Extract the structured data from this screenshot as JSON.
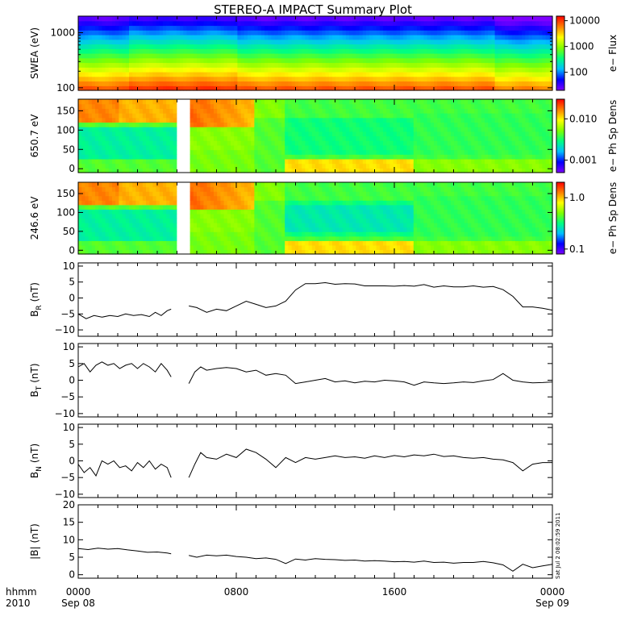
{
  "title": "STEREO-A IMPACT Summary Plot",
  "time_axis": {
    "row_label_1": "hhmm",
    "row_label_2": "2010",
    "ticks": [
      {
        "hour": 0,
        "label": "0000",
        "date": "Sep 08"
      },
      {
        "hour": 8,
        "label": "0800",
        "date": ""
      },
      {
        "hour": 16,
        "label": "1600",
        "date": ""
      },
      {
        "hour": 24,
        "label": "0000",
        "date": "Sep 09"
      }
    ],
    "range_hours": [
      0,
      24
    ]
  },
  "timestamp": "Sat Jul  2 08:02:59 2011",
  "colors": {
    "colorbar_stops": [
      "#7f00ff",
      "#0000ff",
      "#00bfff",
      "#00ff80",
      "#80ff00",
      "#ffff00",
      "#ff8000",
      "#ff0000"
    ]
  },
  "chart_data": [
    {
      "type": "heatmap",
      "ylabel": "SWEA (eV)",
      "yscale": "log",
      "ylim": [
        90,
        2000
      ],
      "yticks": [
        {
          "v": 100,
          "label": "100"
        },
        {
          "v": 1000,
          "label": "1000"
        }
      ],
      "colorbar": {
        "label": "e− Flux",
        "scale": "log",
        "range": [
          20,
          15000
        ],
        "ticks": [
          {
            "v": 100,
            "label": "100"
          },
          {
            "v": 1000,
            "label": "1000"
          },
          {
            "v": 10000,
            "label": "10000"
          }
        ]
      },
      "data_gaps_hours": []
    },
    {
      "type": "heatmap",
      "ylabel": "650.7 eV",
      "ylim": [
        -10,
        180
      ],
      "yticks": [
        {
          "v": 0,
          "label": "0"
        },
        {
          "v": 50,
          "label": "50"
        },
        {
          "v": 100,
          "label": "100"
        },
        {
          "v": 150,
          "label": "150"
        }
      ],
      "colorbar": {
        "label": "e− Ph Sp Dens",
        "scale": "log",
        "range": [
          0.0005,
          0.03
        ],
        "ticks": [
          {
            "v": 0.001,
            "label": "0.001"
          },
          {
            "v": 0.01,
            "label": "0.010"
          }
        ]
      },
      "data_gaps_hours": [
        [
          5.0,
          5.6
        ]
      ]
    },
    {
      "type": "heatmap",
      "ylabel": "246.6 eV",
      "ylim": [
        -10,
        180
      ],
      "yticks": [
        {
          "v": 0,
          "label": "0"
        },
        {
          "v": 50,
          "label": "50"
        },
        {
          "v": 100,
          "label": "100"
        },
        {
          "v": 150,
          "label": "150"
        }
      ],
      "colorbar": {
        "label": "e− Ph Sp Dens",
        "scale": "log",
        "range": [
          0.08,
          2.0
        ],
        "ticks": [
          {
            "v": 0.1,
            "label": "0.1"
          },
          {
            "v": 1.0,
            "label": "1.0"
          }
        ]
      },
      "data_gaps_hours": [
        [
          5.0,
          5.6
        ]
      ]
    },
    {
      "type": "line",
      "ylabel": "B",
      "ylabel_sub": "R",
      "ylabel_unit": "(nT)",
      "ylim": [
        -12,
        11
      ],
      "yticks": [
        {
          "v": -10,
          "label": "−10"
        },
        {
          "v": -5,
          "label": "−5"
        },
        {
          "v": 0,
          "label": "0"
        },
        {
          "v": 5,
          "label": "5"
        },
        {
          "v": 10,
          "label": "10"
        }
      ],
      "series": [
        {
          "segments": [
            {
              "x": [
                0,
                0.4,
                0.8,
                1.2,
                1.6,
                2.0,
                2.4,
                2.8,
                3.2,
                3.6,
                3.9,
                4.2,
                4.5,
                4.7
              ],
              "y": [
                -5,
                -6.5,
                -5.5,
                -6,
                -5.5,
                -5.8,
                -5,
                -5.5,
                -5.2,
                -5.8,
                -4.5,
                -5.5,
                -4,
                -3.5
              ]
            },
            {
              "x": [
                5.6,
                6.0,
                6.5,
                7.0,
                7.5,
                8.0,
                8.5,
                9.0,
                9.5,
                10.0,
                10.5,
                11.0,
                11.5,
                12.0,
                12.5,
                13.0,
                13.5,
                14.0,
                14.5,
                15.0,
                15.5,
                16.0,
                16.5,
                17.0,
                17.5,
                18.0,
                18.5,
                19.0,
                19.5,
                20.0,
                20.5,
                21.0,
                21.5,
                22.0,
                22.5,
                23.0,
                23.5,
                24.0
              ],
              "y": [
                -2.5,
                -3,
                -4.5,
                -3.5,
                -4,
                -2.5,
                -1,
                -2,
                -3,
                -2.5,
                -1,
                2.5,
                4.5,
                4.5,
                4.8,
                4.3,
                4.5,
                4.4,
                3.8,
                3.8,
                3.8,
                3.7,
                3.9,
                3.7,
                4.2,
                3.4,
                3.8,
                3.5,
                3.5,
                3.8,
                3.4,
                3.6,
                2.6,
                0.5,
                -2.8,
                -2.8,
                -3.2,
                -3.8
              ]
            }
          ]
        }
      ]
    },
    {
      "type": "line",
      "ylabel": "B",
      "ylabel_sub": "T",
      "ylabel_unit": "(nT)",
      "ylim": [
        -11,
        11
      ],
      "yticks": [
        {
          "v": -10,
          "label": "−10"
        },
        {
          "v": -5,
          "label": "−5"
        },
        {
          "v": 0,
          "label": "0"
        },
        {
          "v": 5,
          "label": "5"
        },
        {
          "v": 10,
          "label": "10"
        }
      ],
      "series": [
        {
          "segments": [
            {
              "x": [
                0,
                0.3,
                0.6,
                0.9,
                1.2,
                1.5,
                1.8,
                2.1,
                2.4,
                2.7,
                3.0,
                3.3,
                3.6,
                3.9,
                4.2,
                4.5,
                4.7
              ],
              "y": [
                4,
                5,
                2.5,
                4.5,
                5.5,
                4.5,
                5,
                3.5,
                4.5,
                5,
                3.5,
                5,
                4,
                2.5,
                5,
                3,
                1
              ]
            },
            {
              "x": [
                5.6,
                5.9,
                6.2,
                6.5,
                7.0,
                7.5,
                8.0,
                8.5,
                9.0,
                9.5,
                10.0,
                10.5,
                11.0,
                11.5,
                12.0,
                12.5,
                13.0,
                13.5,
                14.0,
                14.5,
                15.0,
                15.5,
                16.0,
                16.5,
                17.0,
                17.5,
                18.0,
                18.5,
                19.0,
                19.5,
                20.0,
                20.5,
                21.0,
                21.5,
                22.0,
                22.5,
                23.0,
                23.5,
                24.0
              ],
              "y": [
                -1,
                2.5,
                4,
                3,
                3.5,
                3.8,
                3.5,
                2.5,
                3,
                1.5,
                2,
                1.5,
                -1,
                -0.5,
                0,
                0.5,
                -0.5,
                -0.2,
                -0.8,
                -0.3,
                -0.5,
                0,
                -0.2,
                -0.5,
                -1.5,
                -0.5,
                -0.8,
                -1,
                -0.8,
                -0.5,
                -0.7,
                -0.2,
                0.2,
                2,
                0,
                -0.5,
                -0.8,
                -0.7,
                -0.5
              ]
            }
          ]
        }
      ]
    },
    {
      "type": "line",
      "ylabel": "B",
      "ylabel_sub": "N",
      "ylabel_unit": "(nT)",
      "ylim": [
        -11,
        11
      ],
      "yticks": [
        {
          "v": -10,
          "label": "−10"
        },
        {
          "v": -5,
          "label": "−5"
        },
        {
          "v": 0,
          "label": "0"
        },
        {
          "v": 5,
          "label": "5"
        },
        {
          "v": 10,
          "label": "10"
        }
      ],
      "series": [
        {
          "segments": [
            {
              "x": [
                0,
                0.3,
                0.6,
                0.9,
                1.2,
                1.5,
                1.8,
                2.1,
                2.4,
                2.7,
                3.0,
                3.3,
                3.6,
                3.9,
                4.2,
                4.5,
                4.7
              ],
              "y": [
                -1,
                -3.5,
                -2,
                -4.5,
                0,
                -1,
                0,
                -2,
                -1.5,
                -3,
                -0.5,
                -2,
                0,
                -2.5,
                -1,
                -2,
                -5
              ]
            },
            {
              "x": [
                5.6,
                5.9,
                6.2,
                6.5,
                7.0,
                7.5,
                8.0,
                8.5,
                9.0,
                9.5,
                10.0,
                10.5,
                11.0,
                11.5,
                12.0,
                12.5,
                13.0,
                13.5,
                14.0,
                14.5,
                15.0,
                15.5,
                16.0,
                16.5,
                17.0,
                17.5,
                18.0,
                18.5,
                19.0,
                19.5,
                20.0,
                20.5,
                21.0,
                21.5,
                22.0,
                22.5,
                23.0,
                23.5,
                24.0
              ],
              "y": [
                -5,
                -1,
                2.5,
                1,
                0.5,
                2,
                1,
                3.5,
                2.5,
                0.5,
                -2,
                1,
                -0.5,
                1,
                0.5,
                1,
                1.5,
                1,
                1.2,
                0.8,
                1.5,
                1,
                1.6,
                1.2,
                1.8,
                1.5,
                2,
                1.3,
                1.5,
                1,
                0.8,
                1,
                0.5,
                0.3,
                -0.5,
                -3,
                -1,
                -0.5,
                -0.5
              ]
            }
          ]
        }
      ]
    },
    {
      "type": "line",
      "ylabel": "|B|",
      "ylabel_sub": "",
      "ylabel_unit": "(nT)",
      "ylim": [
        -1,
        20
      ],
      "yticks": [
        {
          "v": 0,
          "label": "0"
        },
        {
          "v": 5,
          "label": "5"
        },
        {
          "v": 10,
          "label": "10"
        },
        {
          "v": 15,
          "label": "15"
        },
        {
          "v": 20,
          "label": "20"
        }
      ],
      "series": [
        {
          "segments": [
            {
              "x": [
                0,
                0.5,
                1.0,
                1.5,
                2.0,
                2.5,
                3.0,
                3.5,
                4.0,
                4.5,
                4.7
              ],
              "y": [
                7.5,
                7.2,
                7.6,
                7.3,
                7.5,
                7.1,
                6.8,
                6.4,
                6.5,
                6.2,
                6.0
              ]
            },
            {
              "x": [
                5.6,
                6.0,
                6.5,
                7.0,
                7.5,
                8.0,
                8.5,
                9.0,
                9.5,
                10.0,
                10.5,
                11.0,
                11.5,
                12.0,
                12.5,
                13.0,
                13.5,
                14.0,
                14.5,
                15.0,
                15.5,
                16.0,
                16.5,
                17.0,
                17.5,
                18.0,
                18.5,
                19.0,
                19.5,
                20.0,
                20.5,
                21.0,
                21.5,
                22.0,
                22.5,
                23.0,
                23.5,
                24.0
              ],
              "y": [
                5.5,
                5.0,
                5.6,
                5.4,
                5.6,
                5.2,
                5.0,
                4.6,
                4.8,
                4.4,
                3.2,
                4.5,
                4.2,
                4.6,
                4.4,
                4.3,
                4.1,
                4.2,
                3.9,
                4.0,
                3.9,
                3.7,
                3.8,
                3.6,
                3.9,
                3.5,
                3.6,
                3.3,
                3.5,
                3.5,
                3.8,
                3.4,
                2.8,
                1.0,
                3.0,
                2.0,
                2.5,
                3.0
              ]
            }
          ]
        }
      ]
    }
  ]
}
